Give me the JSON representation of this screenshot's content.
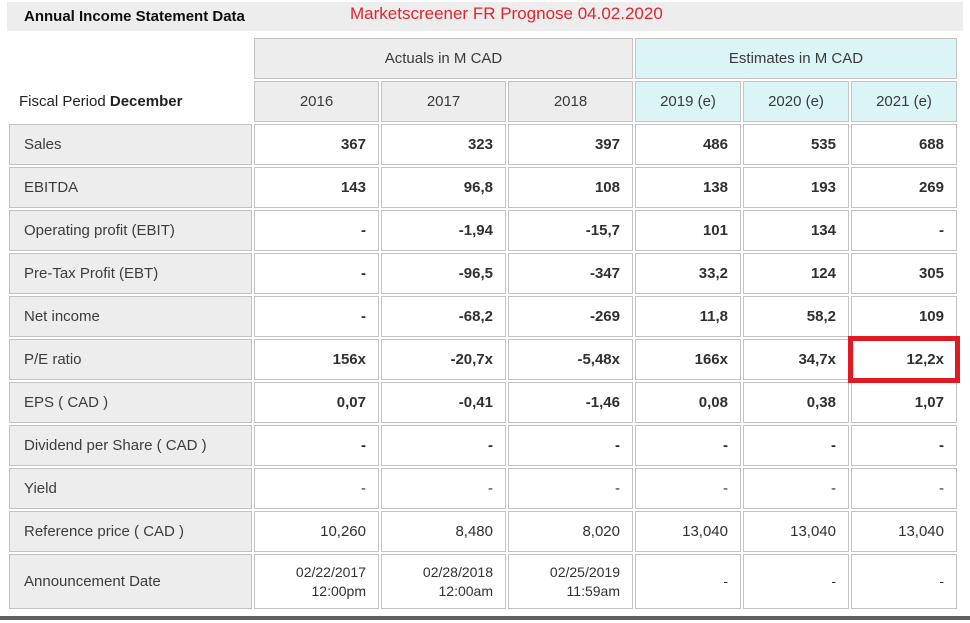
{
  "page": {
    "title": "Annual Income Statement Data",
    "annotation": "Marketscreener FR Prognose 04.02.2020"
  },
  "colors": {
    "header_gray_bg": "#ededed",
    "estimate_cyan_bg": "#dbf5f7",
    "cell_border": "#c2c2c2",
    "annotation_red": "#e32430",
    "highlight_box_red": "#e01a20",
    "bottom_bar_gray": "#606060"
  },
  "table": {
    "corner": {
      "prefix": "Fiscal Period ",
      "bold_word": "December"
    },
    "group_actuals": "Actuals in M CAD",
    "group_estimates": "Estimates in M CAD",
    "columns": [
      "2016",
      "2017",
      "2018",
      "2019 (e)",
      "2020 (e)",
      "2021 (e)"
    ],
    "estimate_col_start": 3,
    "rows": [
      {
        "label": "Sales",
        "values": [
          "367",
          "323",
          "397",
          "486",
          "535",
          "688"
        ],
        "bold": true
      },
      {
        "label": "EBITDA",
        "values": [
          "143",
          "96,8",
          "108",
          "138",
          "193",
          "269"
        ],
        "bold": true
      },
      {
        "label": "Operating profit (EBIT)",
        "values": [
          "-",
          "-1,94",
          "-15,7",
          "101",
          "134",
          "-"
        ],
        "bold": true
      },
      {
        "label": "Pre-Tax Profit (EBT)",
        "values": [
          "-",
          "-96,5",
          "-347",
          "33,2",
          "124",
          "305"
        ],
        "bold": true
      },
      {
        "label": "Net income",
        "values": [
          "-",
          "-68,2",
          "-269",
          "11,8",
          "58,2",
          "109"
        ],
        "bold": true
      },
      {
        "label": "P/E ratio",
        "values": [
          "156x",
          "-20,7x",
          "-5,48x",
          "166x",
          "34,7x",
          "12,2x"
        ],
        "bold": true,
        "highlight_col": 5
      },
      {
        "label": "EPS ( CAD )",
        "values": [
          "0,07",
          "-0,41",
          "-1,46",
          "0,08",
          "0,38",
          "1,07"
        ],
        "bold": true
      },
      {
        "label": "Dividend per Share ( CAD )",
        "values": [
          "-",
          "-",
          "-",
          "-",
          "-",
          "-"
        ],
        "bold": true
      },
      {
        "label": "Yield",
        "values": [
          "-",
          "-",
          "-",
          "-",
          "-",
          "-"
        ],
        "bold": false
      },
      {
        "label": "Reference price ( CAD )",
        "values": [
          "10,260",
          "8,480",
          "8,020",
          "13,040",
          "13,040",
          "13,040"
        ],
        "bold": false
      },
      {
        "label": "Announcement Date",
        "values": [
          "02/22/2017\n12:00pm",
          "02/28/2018\n12:00am",
          "02/25/2019\n11:59am",
          "-",
          "-",
          "-"
        ],
        "bold": false,
        "multiline": true
      }
    ]
  }
}
